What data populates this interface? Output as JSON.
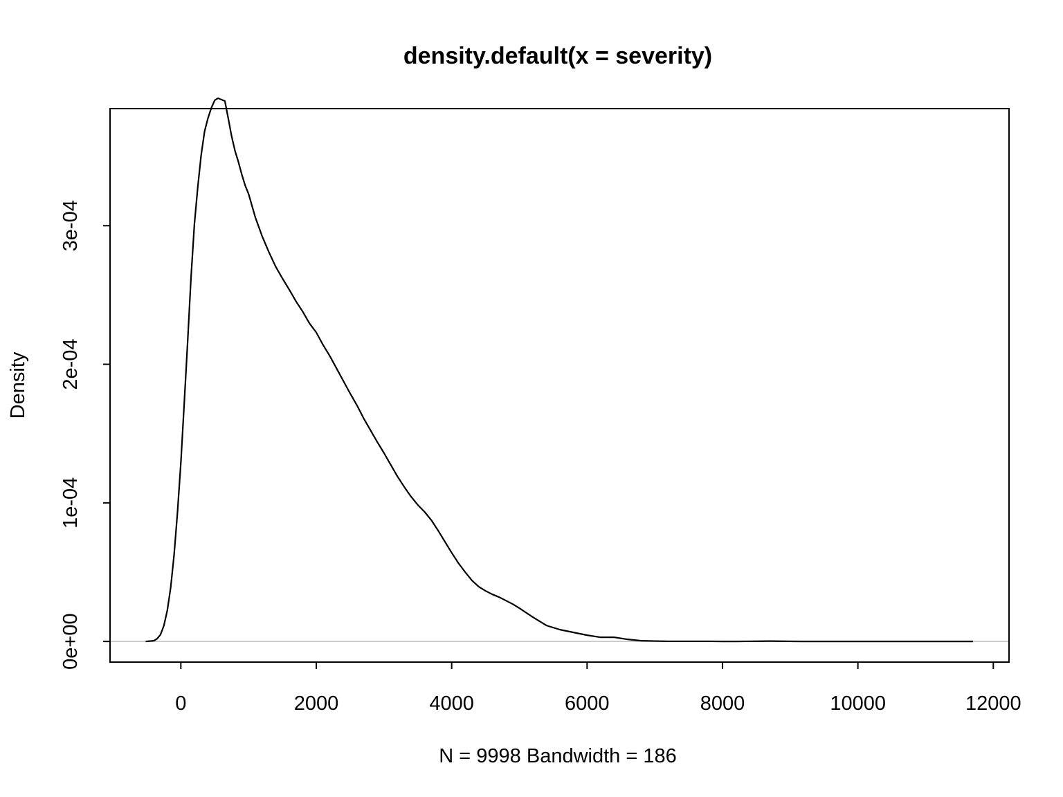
{
  "chart_data": {
    "type": "line",
    "title": "density.default(x = severity)",
    "xlabel": "N = 9998   Bandwidth = 186",
    "ylabel": "Density",
    "xlim": [
      -1046,
      12232
    ],
    "ylim": [
      -1.49e-05,
      0.0003845
    ],
    "x_ticks": [
      0,
      2000,
      4000,
      6000,
      8000,
      10000,
      12000
    ],
    "x_tick_labels": [
      "0",
      "2000",
      "4000",
      "6000",
      "8000",
      "10000",
      "12000"
    ],
    "y_ticks": [
      0,
      0.0001,
      0.0002,
      0.0003
    ],
    "y_tick_labels": [
      "0e+00",
      "1e-04",
      "2e-04",
      "3e-04"
    ],
    "grid": false,
    "baseline": {
      "y": 0,
      "color": "#c0c0c0"
    },
    "series": [
      {
        "color": "#000000",
        "x": [
          -520,
          -400,
          -350,
          -300,
          -250,
          -200,
          -150,
          -100,
          -50,
          0,
          50,
          100,
          150,
          200,
          250,
          300,
          350,
          400,
          450,
          500,
          550,
          600,
          650,
          700,
          750,
          800,
          850,
          900,
          950,
          1000,
          1100,
          1200,
          1300,
          1400,
          1500,
          1600,
          1700,
          1800,
          1900,
          2000,
          2100,
          2200,
          2300,
          2400,
          2500,
          2600,
          2700,
          2800,
          2900,
          3000,
          3100,
          3200,
          3300,
          3400,
          3500,
          3600,
          3700,
          3800,
          3900,
          4000,
          4100,
          4200,
          4300,
          4400,
          4500,
          4600,
          4700,
          4800,
          4900,
          5000,
          5200,
          5400,
          5600,
          5800,
          6000,
          6200,
          6400,
          6600,
          6800,
          7000,
          7200,
          7500,
          7800,
          8000,
          8200,
          8400,
          8600,
          8700,
          8800,
          9000,
          9200,
          9400,
          9600,
          9800,
          10000,
          10200,
          10500,
          10800,
          11000,
          11200,
          11400,
          11700
        ],
        "y": [
          0,
          5e-07,
          2e-06,
          5e-06,
          1.15e-05,
          2.25e-05,
          3.9e-05,
          6.25e-05,
          9.3e-05,
          0.000129,
          0.000172,
          0.000216,
          0.0002625,
          0.000301,
          0.000328,
          0.000351,
          0.000368,
          0.0003775,
          0.000385,
          0.0003905,
          0.000392,
          0.000391,
          0.00039,
          0.0003775,
          0.0003645,
          0.000354,
          0.000346,
          0.000337,
          0.000329,
          0.000323,
          0.000306,
          0.0002925,
          0.000281,
          0.0002705,
          0.000262,
          0.000254,
          0.0002455,
          0.000238,
          0.0002295,
          0.000223,
          0.000214,
          0.000206,
          0.000197,
          0.000188,
          0.000179,
          0.0001705,
          0.000161,
          0.0001525,
          0.000144,
          0.000136,
          0.0001275,
          0.000119,
          0.0001115,
          0.0001045,
          9.85e-05,
          9.35e-05,
          8.75e-05,
          8e-05,
          7.2e-05,
          6.4e-05,
          5.65e-05,
          5e-05,
          4.4e-05,
          3.95e-05,
          3.65e-05,
          3.4e-05,
          3.2e-05,
          2.95e-05,
          2.7e-05,
          2.4e-05,
          1.75e-05,
          1.15e-05,
          8.5e-06,
          6.5e-06,
          4.5e-06,
          3e-06,
          3e-06,
          1.5e-06,
          5e-07,
          3e-07,
          1e-07,
          1e-07,
          1e-07,
          0,
          0,
          1e-07,
          2e-07,
          3e-07,
          2e-07,
          1e-07,
          0,
          0,
          0,
          0,
          0,
          0,
          0,
          0,
          0,
          0,
          0,
          0
        ]
      }
    ]
  }
}
